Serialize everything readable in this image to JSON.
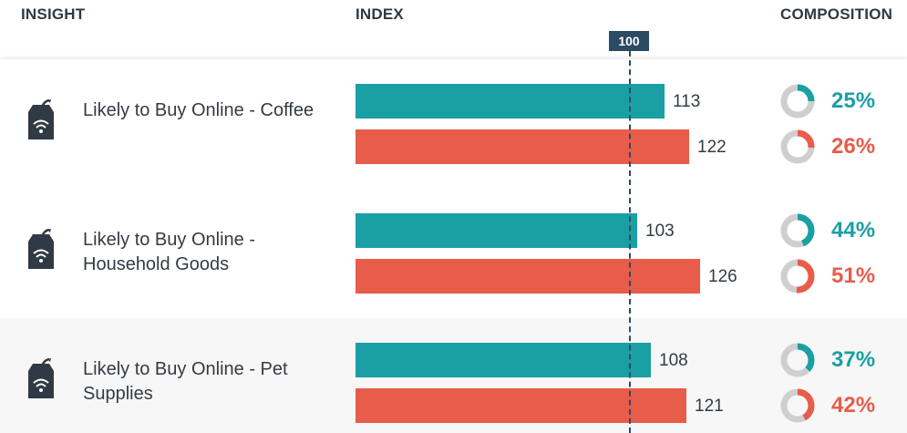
{
  "headers": {
    "insight": "INSIGHT",
    "index": "INDEX",
    "composition": "COMPOSITION"
  },
  "colors": {
    "teal": "#1a9fa4",
    "coral": "#e85c4a",
    "donut_track": "#cfcfcf",
    "reference": "#2b4a63"
  },
  "icon": "shopping-bag-wifi-icon",
  "chart_data": {
    "type": "bar",
    "orientation": "horizontal",
    "reference_value": 100,
    "reference_label": "100",
    "categories": [
      "Likely to Buy Online - Coffee",
      "Likely to Buy Online - Household Goods",
      "Likely to Buy Online - Pet Supplies"
    ],
    "series": [
      {
        "color": "#1a9fa4",
        "values": [
          113,
          103,
          108
        ],
        "composition": [
          25,
          44,
          37
        ]
      },
      {
        "color": "#e85c4a",
        "values": [
          122,
          126,
          121
        ],
        "composition": [
          26,
          51,
          42
        ]
      }
    ]
  },
  "rows": [
    {
      "label": "Likely to Buy Online - Coffee",
      "bars": [
        {
          "value": "113",
          "pct": "25%"
        },
        {
          "value": "122",
          "pct": "26%"
        }
      ]
    },
    {
      "label": "Likely to Buy Online - Household Goods",
      "bars": [
        {
          "value": "103",
          "pct": "44%"
        },
        {
          "value": "126",
          "pct": "51%"
        }
      ]
    },
    {
      "label": "Likely to Buy Online - Pet Supplies",
      "bars": [
        {
          "value": "108",
          "pct": "37%"
        },
        {
          "value": "121",
          "pct": "42%"
        }
      ]
    }
  ]
}
